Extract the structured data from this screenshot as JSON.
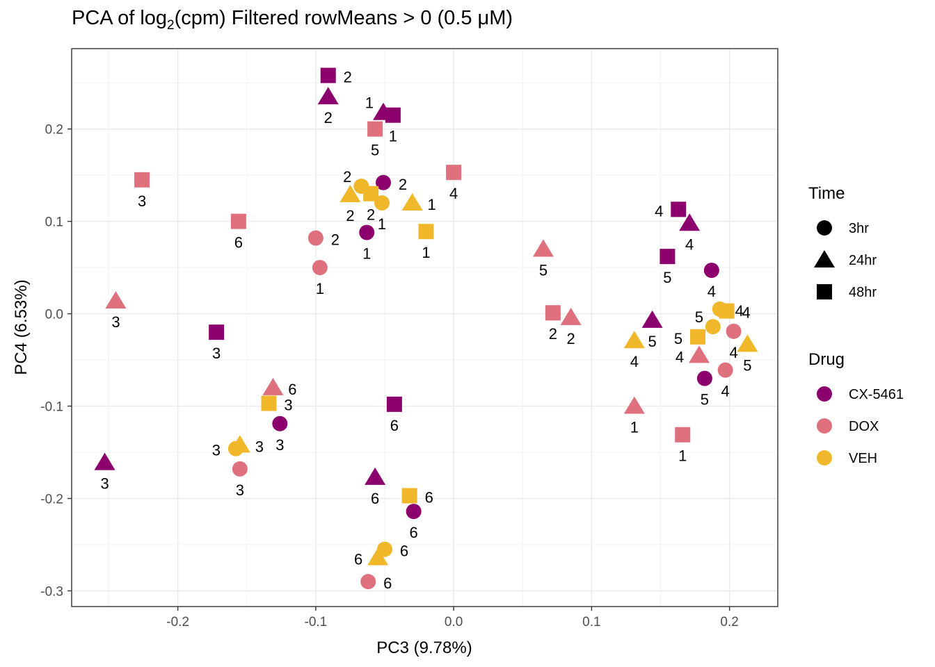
{
  "chart_data": {
    "type": "scatter",
    "title_parts": [
      "PCA of log",
      "2",
      "(cpm) Filtered rowMeans > 0 (0.5 μM)"
    ],
    "xlabel": "PC3 (9.78%)",
    "ylabel": "PC4 (6.53%)",
    "xlim": [
      -0.277,
      0.235
    ],
    "ylim": [
      -0.317,
      0.287
    ],
    "x_ticks": [
      -0.2,
      -0.1,
      0.0,
      0.1,
      0.2
    ],
    "x_tick_labels": [
      "-0.2",
      "-0.1",
      "0.0",
      "0.1",
      "0.2"
    ],
    "y_ticks": [
      -0.3,
      -0.2,
      -0.1,
      0.0,
      0.1,
      0.2
    ],
    "y_tick_labels": [
      "-0.3",
      "-0.2",
      "-0.1",
      "0.0",
      "0.1",
      "0.2"
    ],
    "grid": true,
    "legend_placement": "right",
    "legends": [
      {
        "title": "Time",
        "items": [
          {
            "label": "3hr",
            "shape": "circle"
          },
          {
            "label": "24hr",
            "shape": "triangle"
          },
          {
            "label": "48hr",
            "shape": "square"
          }
        ]
      },
      {
        "title": "Drug",
        "items": [
          {
            "label": "CX-5461",
            "color": "#8B006D"
          },
          {
            "label": "DOX",
            "color": "#DF707E"
          },
          {
            "label": "VEH",
            "color": "#F1B72B"
          }
        ]
      }
    ],
    "colors": {
      "CX-5461": "#8B006D",
      "DOX": "#DF707E",
      "VEH": "#F1B72B"
    },
    "points": [
      {
        "drug": "CX-5461",
        "time": "48hr",
        "label": "2",
        "x": -0.091,
        "y": 0.258
      },
      {
        "drug": "CX-5461",
        "time": "24hr",
        "label": "2",
        "x": -0.091,
        "y": 0.235
      },
      {
        "drug": "CX-5461",
        "time": "24hr",
        "label": "1",
        "x": -0.051,
        "y": 0.218
      },
      {
        "drug": "CX-5461",
        "time": "48hr",
        "label": "1",
        "x": -0.044,
        "y": 0.215
      },
      {
        "drug": "DOX",
        "time": "48hr",
        "label": "5",
        "x": -0.057,
        "y": 0.2
      },
      {
        "drug": "DOX",
        "time": "48hr",
        "label": "3",
        "x": -0.226,
        "y": 0.145
      },
      {
        "drug": "DOX",
        "time": "48hr",
        "label": "4",
        "x": 0.0,
        "y": 0.153
      },
      {
        "drug": "CX-5461",
        "time": "3hr",
        "label": "2",
        "x": -0.051,
        "y": 0.142
      },
      {
        "drug": "VEH",
        "time": "3hr",
        "label": "2",
        "x": -0.067,
        "y": 0.138
      },
      {
        "drug": "VEH",
        "time": "24hr",
        "label": "2",
        "x": -0.075,
        "y": 0.129
      },
      {
        "drug": "VEH",
        "time": "48hr",
        "label": "2",
        "x": -0.06,
        "y": 0.13
      },
      {
        "drug": "VEH",
        "time": "3hr",
        "label": "1",
        "x": -0.052,
        "y": 0.12
      },
      {
        "drug": "VEH",
        "time": "24hr",
        "label": "1",
        "x": -0.03,
        "y": 0.12
      },
      {
        "drug": "DOX",
        "time": "48hr",
        "label": "6",
        "x": -0.156,
        "y": 0.1
      },
      {
        "drug": "VEH",
        "time": "48hr",
        "label": "1",
        "x": -0.02,
        "y": 0.089
      },
      {
        "drug": "CX-5461",
        "time": "3hr",
        "label": "1",
        "x": -0.063,
        "y": 0.088
      },
      {
        "drug": "DOX",
        "time": "3hr",
        "label": "2",
        "x": -0.1,
        "y": 0.082
      },
      {
        "drug": "DOX",
        "time": "3hr",
        "label": "1",
        "x": -0.097,
        "y": 0.05
      },
      {
        "drug": "DOX",
        "time": "24hr",
        "label": "3",
        "x": -0.245,
        "y": 0.014
      },
      {
        "drug": "CX-5461",
        "time": "48hr",
        "label": "3",
        "x": -0.172,
        "y": -0.02
      },
      {
        "drug": "DOX",
        "time": "24hr",
        "label": "6",
        "x": -0.131,
        "y": -0.08
      },
      {
        "drug": "VEH",
        "time": "48hr",
        "label": "3",
        "x": -0.134,
        "y": -0.097
      },
      {
        "drug": "CX-5461",
        "time": "3hr",
        "label": "3",
        "x": -0.126,
        "y": -0.119
      },
      {
        "drug": "CX-5461",
        "time": "48hr",
        "label": "6",
        "x": -0.043,
        "y": -0.098
      },
      {
        "drug": "VEH",
        "time": "24hr",
        "label": "3",
        "x": -0.155,
        "y": -0.142
      },
      {
        "drug": "VEH",
        "time": "3hr",
        "label": "3",
        "x": -0.158,
        "y": -0.146
      },
      {
        "drug": "DOX",
        "time": "3hr",
        "label": "3",
        "x": -0.155,
        "y": -0.168
      },
      {
        "drug": "CX-5461",
        "time": "24hr",
        "label": "3",
        "x": -0.253,
        "y": -0.161
      },
      {
        "drug": "CX-5461",
        "time": "24hr",
        "label": "6",
        "x": -0.057,
        "y": -0.177
      },
      {
        "drug": "VEH",
        "time": "48hr",
        "label": "6",
        "x": -0.032,
        "y": -0.197
      },
      {
        "drug": "CX-5461",
        "time": "3hr",
        "label": "6",
        "x": -0.029,
        "y": -0.214
      },
      {
        "drug": "VEH",
        "time": "3hr",
        "label": "6",
        "x": -0.05,
        "y": -0.255
      },
      {
        "drug": "VEH",
        "time": "24hr",
        "label": "6",
        "x": -0.055,
        "y": -0.264
      },
      {
        "drug": "DOX",
        "time": "3hr",
        "label": "6",
        "x": -0.062,
        "y": -0.29
      },
      {
        "drug": "CX-5461",
        "time": "48hr",
        "label": "4",
        "x": 0.163,
        "y": 0.113
      },
      {
        "drug": "CX-5461",
        "time": "24hr",
        "label": "4",
        "x": 0.171,
        "y": 0.098
      },
      {
        "drug": "DOX",
        "time": "24hr",
        "label": "5",
        "x": 0.065,
        "y": 0.07
      },
      {
        "drug": "CX-5461",
        "time": "48hr",
        "label": "5",
        "x": 0.155,
        "y": 0.062
      },
      {
        "drug": "CX-5461",
        "time": "3hr",
        "label": "4",
        "x": 0.187,
        "y": 0.047
      },
      {
        "drug": "VEH",
        "time": "3hr",
        "label": "4",
        "x": 0.193,
        "y": 0.005
      },
      {
        "drug": "VEH",
        "time": "48hr",
        "label": "4",
        "x": 0.198,
        "y": 0.003
      },
      {
        "drug": "DOX",
        "time": "48hr",
        "label": "2",
        "x": 0.072,
        "y": 0.001
      },
      {
        "drug": "DOX",
        "time": "24hr",
        "label": "2",
        "x": 0.085,
        "y": -0.004
      },
      {
        "drug": "CX-5461",
        "time": "24hr",
        "label": "5",
        "x": 0.144,
        "y": -0.007
      },
      {
        "drug": "VEH",
        "time": "3hr",
        "label": "5",
        "x": 0.188,
        "y": -0.014
      },
      {
        "drug": "DOX",
        "time": "3hr",
        "label": "4",
        "x": 0.203,
        "y": -0.019
      },
      {
        "drug": "VEH",
        "time": "48hr",
        "label": "5",
        "x": 0.177,
        "y": -0.025
      },
      {
        "drug": "VEH",
        "time": "24hr",
        "label": "4",
        "x": 0.131,
        "y": -0.029
      },
      {
        "drug": "VEH",
        "time": "24hr",
        "label": "5",
        "x": 0.213,
        "y": -0.033
      },
      {
        "drug": "DOX",
        "time": "24hr",
        "label": "4",
        "x": 0.178,
        "y": -0.045
      },
      {
        "drug": "DOX",
        "time": "3hr",
        "label": "4",
        "x": 0.197,
        "y": -0.061
      },
      {
        "drug": "CX-5461",
        "time": "3hr",
        "label": "5",
        "x": 0.182,
        "y": -0.07
      },
      {
        "drug": "DOX",
        "time": "24hr",
        "label": "1",
        "x": 0.131,
        "y": -0.1
      },
      {
        "drug": "DOX",
        "time": "48hr",
        "label": "1",
        "x": 0.166,
        "y": -0.131
      }
    ]
  }
}
